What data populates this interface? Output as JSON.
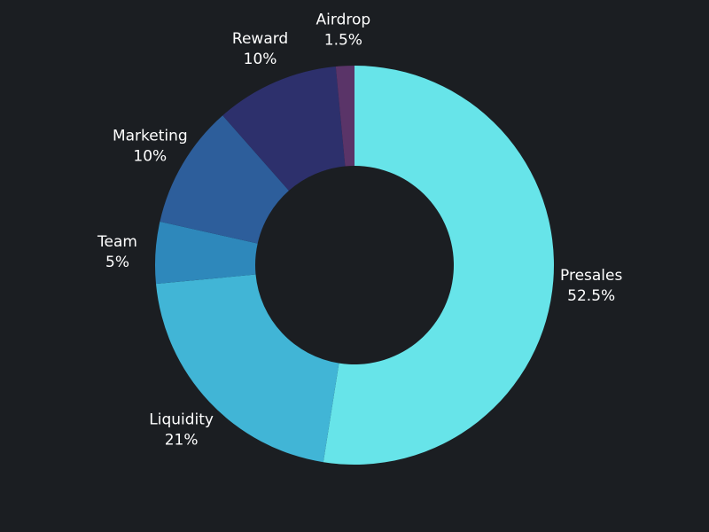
{
  "chart_data": {
    "type": "pie",
    "variant": "donut",
    "title": "",
    "legend": "none",
    "slices": [
      {
        "label": "Presales",
        "value": 52.5,
        "value_label": "52.5%",
        "color": "#67e4e9"
      },
      {
        "label": "Liquidity",
        "value": 21,
        "value_label": "21%",
        "color": "#41b5d6"
      },
      {
        "label": "Team",
        "value": 5,
        "value_label": "5%",
        "color": "#2e88bb"
      },
      {
        "label": "Marketing",
        "value": 10,
        "value_label": "10%",
        "color": "#2d5e9b"
      },
      {
        "label": "Reward",
        "value": 10,
        "value_label": "10%",
        "color": "#2d306c"
      },
      {
        "label": "Airdrop",
        "value": 1.5,
        "value_label": "1.5%",
        "color": "#5a3468"
      }
    ]
  },
  "colors": {
    "background": "#1b1e22",
    "label_text": "#ffffff"
  }
}
